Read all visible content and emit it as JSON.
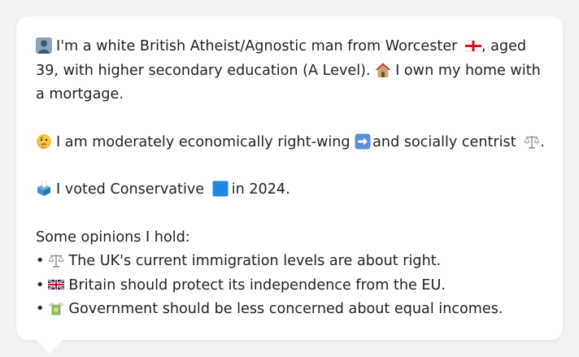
{
  "profile": {
    "intro": {
      "icon": "person-silhouette-icon",
      "text_a": "I'm a white British Atheist/Agnostic man from Worcester",
      "flag_icon": "england-flag-icon",
      "text_b": ", aged 39, with higher secondary education (A Level).",
      "home_icon": "house-icon",
      "text_c": "I own my home with a mortgage."
    },
    "politics": {
      "icon": "thinking-face-icon",
      "text_a": "I am moderately economically right-wing",
      "arrow_icon": "right-arrow-icon",
      "text_b": "and socially centrist",
      "scales_icon": "balance-scale-icon",
      "text_c": "."
    },
    "vote": {
      "icon": "ballot-box-icon",
      "text_a": "I voted Conservative",
      "square_icon": "blue-square-icon",
      "text_b": "in 2024."
    },
    "opinions": {
      "heading": "Some opinions I hold:",
      "bullet": "•",
      "items": [
        {
          "icon": "balance-scale-icon",
          "text": "The UK's current immigration levels are about right."
        },
        {
          "icon": "union-jack-flag-icon",
          "text": "Britain should protect its independence from the EU."
        },
        {
          "icon": "money-with-wings-icon",
          "text": "Government should be less concerned about equal incomes."
        }
      ]
    }
  },
  "colors": {
    "background": "#f1f2f4",
    "bubble": "#ffffff",
    "text": "#222222",
    "conservative_blue": "#1e88e5"
  }
}
